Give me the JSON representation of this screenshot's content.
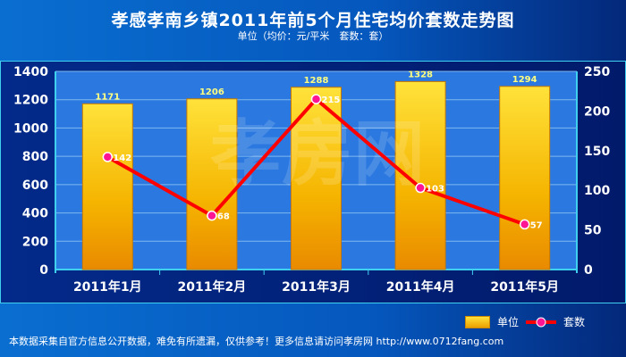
{
  "title": "孝感孝南乡镇2011年前5个月住宅均价套数走势图",
  "subtitle": "单位（均价：元/平米　套数：套）",
  "watermark": "孝房网",
  "footer_note": "本数据采集自官方信息公开数据，难免有所遗漏，仅供参考！更多信息请访问孝房网 http://www.0712fang.com",
  "colors": {
    "bar": "#f7c000",
    "line": "#ff0000",
    "marker": "#ff1493"
  },
  "chart_data": {
    "type": "bar",
    "title": "孝感孝南乡镇2011年前5个月住宅均价套数走势图",
    "categories": [
      "2011年1月",
      "2011年2月",
      "2011年3月",
      "2011年4月",
      "2011年5月"
    ],
    "series": [
      {
        "name": "单位",
        "type": "bar",
        "axis": "left",
        "values": [
          1171,
          1206,
          1288,
          1328,
          1294
        ]
      },
      {
        "name": "套数",
        "type": "line",
        "axis": "right",
        "values": [
          142,
          68,
          215,
          103,
          57
        ]
      }
    ],
    "ylim_left": [
      0,
      1400
    ],
    "yticks_left": [
      0,
      200,
      400,
      600,
      800,
      1000,
      1200,
      1400
    ],
    "ylim_right": [
      0,
      250
    ],
    "yticks_right": [
      0,
      50,
      100,
      150,
      200,
      250
    ],
    "grid": true,
    "legend": "bottom-right"
  }
}
